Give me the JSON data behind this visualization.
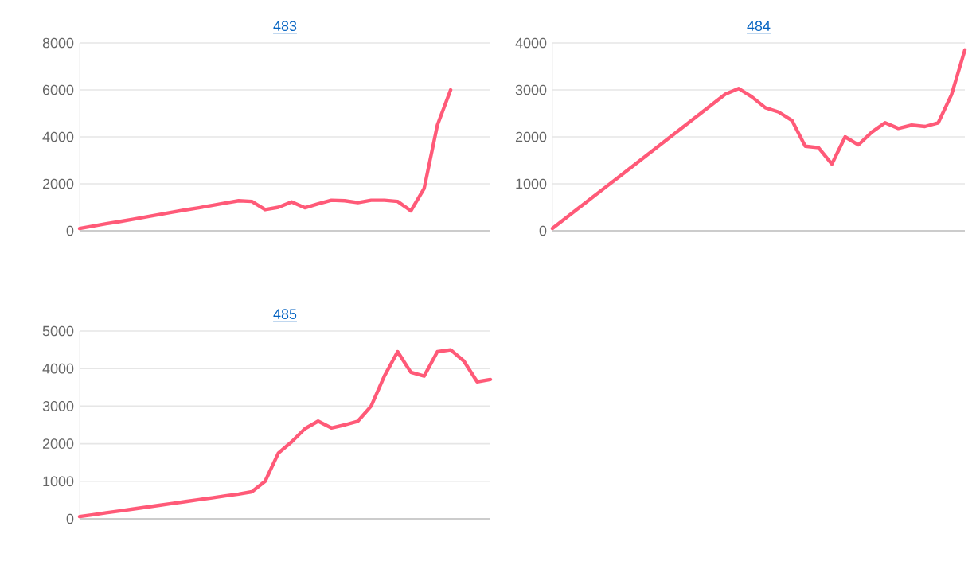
{
  "chart_data": [
    {
      "type": "line",
      "title": "483",
      "categories": [
        null,
        null,
        null,
        null,
        null,
        null,
        null,
        null,
        null,
        null,
        null,
        null,
        null,
        null,
        null,
        null,
        null,
        null,
        null,
        null,
        null,
        null,
        null,
        null,
        null,
        null,
        null,
        null,
        null,
        null,
        null,
        null
      ],
      "values": [
        100,
        200,
        300,
        390,
        490,
        590,
        690,
        790,
        890,
        980,
        1080,
        1180,
        1280,
        1250,
        900,
        1000,
        1230,
        980,
        1150,
        1300,
        1280,
        1200,
        1300,
        1300,
        1250,
        850,
        1800,
        4500,
        6000,
        null,
        null,
        null
      ],
      "color": "#ff5a78",
      "ylim": [
        0,
        8000
      ],
      "yticks": [
        0,
        2000,
        4000,
        6000,
        8000
      ],
      "grid": "y",
      "tick_labels": "y"
    },
    {
      "type": "line",
      "title": "484",
      "categories": [
        null,
        null,
        null,
        null,
        null,
        null,
        null,
        null,
        null,
        null,
        null,
        null,
        null,
        null,
        null,
        null,
        null,
        null,
        null,
        null,
        null,
        null,
        null,
        null,
        null,
        null,
        null,
        null,
        null,
        null,
        null,
        null
      ],
      "values": [
        50,
        270,
        490,
        710,
        930,
        1150,
        1370,
        1590,
        1810,
        2030,
        2250,
        2470,
        2690,
        2910,
        3030,
        2850,
        2620,
        2530,
        2350,
        1800,
        1770,
        1420,
        2000,
        1830,
        2100,
        2300,
        2180,
        2250,
        2220,
        2300,
        2900,
        3850
      ],
      "color": "#ff5a78",
      "ylim": [
        0,
        4000
      ],
      "yticks": [
        0,
        1000,
        2000,
        3000,
        4000
      ],
      "grid": "y",
      "tick_labels": "y"
    },
    {
      "type": "line",
      "title": "485",
      "categories": [
        null,
        null,
        null,
        null,
        null,
        null,
        null,
        null,
        null,
        null,
        null,
        null,
        null,
        null,
        null,
        null,
        null,
        null,
        null,
        null,
        null,
        null,
        null,
        null,
        null,
        null,
        null,
        null,
        null,
        null,
        null,
        null
      ],
      "values": [
        60,
        110,
        160,
        210,
        260,
        310,
        360,
        410,
        460,
        510,
        560,
        610,
        660,
        720,
        1000,
        1750,
        2050,
        2400,
        2600,
        2420,
        2500,
        2600,
        3000,
        3800,
        4450,
        3900,
        3800,
        4450,
        4500,
        4200,
        3650,
        3710
      ],
      "color": "#ff5a78",
      "ylim": [
        0,
        5000
      ],
      "yticks": [
        0,
        1000,
        2000,
        3000,
        4000,
        5000
      ],
      "grid": "y",
      "tick_labels": "y"
    }
  ]
}
